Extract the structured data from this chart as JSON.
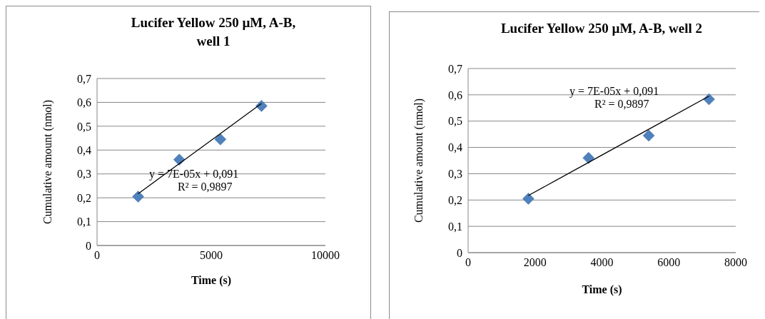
{
  "chart_data": [
    {
      "type": "scatter",
      "title": "Lucifer Yellow 250 µM, A-B, well 1",
      "xlabel": "Time (s)",
      "ylabel": "Cumulative amount (nmol)",
      "marker": "diamond",
      "grid": "y",
      "xlim": [
        0,
        10000
      ],
      "xticks": [
        0,
        5000,
        10000
      ],
      "ylim": [
        0,
        0.7
      ],
      "yticks": [
        {
          "value": 0,
          "label": "0"
        },
        {
          "value": 0.1,
          "label": "0,1"
        },
        {
          "value": 0.2,
          "label": "0,2"
        },
        {
          "value": 0.3,
          "label": "0,3"
        },
        {
          "value": 0.4,
          "label": "0,4"
        },
        {
          "value": 0.5,
          "label": "0,5"
        },
        {
          "value": 0.6,
          "label": "0,6"
        },
        {
          "value": 0.7,
          "label": "0,7"
        }
      ],
      "x": [
        1800,
        3600,
        5400,
        7200
      ],
      "series": [
        {
          "color": "#4f81bd",
          "values": [
            0.205,
            0.36,
            0.445,
            0.585
          ]
        },
        {
          "type": "line",
          "marker": "none",
          "color": "#000000",
          "values": [
            0.217,
            0.343,
            0.469,
            0.595
          ]
        }
      ],
      "annotations": [
        "y = 7E-05x + 0,091",
        "R² = 0,9897"
      ]
    },
    {
      "type": "scatter",
      "title": "Lucifer Yellow 250 µM, A-B, well 2",
      "xlabel": "Time (s)",
      "ylabel": "Cumulative amount (nmol)",
      "marker": "diamond",
      "grid": "y",
      "xlim": [
        0,
        8000
      ],
      "xticks": [
        0,
        2000,
        4000,
        6000,
        8000
      ],
      "ylim": [
        0,
        0.7
      ],
      "yticks": [
        {
          "value": 0,
          "label": "0"
        },
        {
          "value": 0.1,
          "label": "0,1"
        },
        {
          "value": 0.2,
          "label": "0,2"
        },
        {
          "value": 0.3,
          "label": "0,3"
        },
        {
          "value": 0.4,
          "label": "0,4"
        },
        {
          "value": 0.5,
          "label": "0,5"
        },
        {
          "value": 0.6,
          "label": "0,6"
        },
        {
          "value": 0.7,
          "label": "0,7"
        }
      ],
      "x": [
        1800,
        3600,
        5400,
        7200
      ],
      "series": [
        {
          "color": "#4f81bd",
          "values": [
            0.205,
            0.36,
            0.445,
            0.583
          ]
        },
        {
          "type": "line",
          "marker": "none",
          "color": "#000000",
          "values": [
            0.217,
            0.343,
            0.469,
            0.595
          ]
        }
      ],
      "annotations": [
        "y = 7E-05x + 0,091",
        "R² = 0,9897"
      ]
    }
  ]
}
